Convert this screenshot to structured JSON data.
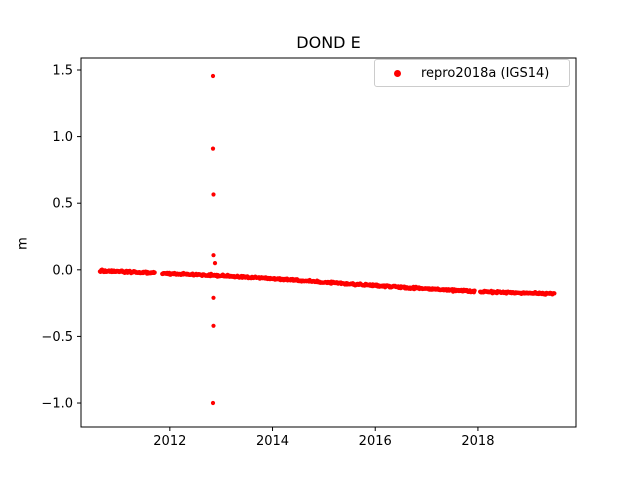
{
  "chart_data": {
    "type": "scatter",
    "title": "DOND E",
    "xlabel": "",
    "ylabel": "m",
    "xlim": [
      2010.27,
      2019.91
    ],
    "ylim": [
      -1.18,
      1.59
    ],
    "xticks": {
      "values": [
        2012,
        2014,
        2016,
        2018
      ],
      "labels": [
        "2012",
        "2014",
        "2016",
        "2018"
      ]
    },
    "yticks": {
      "values": [
        -1.0,
        -0.5,
        0.0,
        0.5,
        1.0,
        1.5
      ],
      "labels": [
        "−1.0",
        "−0.5",
        "0.0",
        "0.5",
        "1.0",
        "1.5"
      ]
    },
    "grid": false,
    "axes_color": "#000000",
    "legend": {
      "position": "upper right",
      "border_color": "#cccccc",
      "entries": [
        {
          "label": "repro2018a (IGS14)",
          "color": "#ff0000",
          "marker": "dot"
        }
      ]
    },
    "series": [
      {
        "name": "repro2018a (IGS14)",
        "color": "#ff0000",
        "marker": "dot",
        "marker_radius_px": 2.1,
        "point_spacing_years": 0.011,
        "scatter_noise_sd_m": 0.004,
        "trend_segments": [
          {
            "points": [
              [
                2010.64,
                -0.008
              ],
              [
                2011.2,
                -0.016
              ],
              [
                2011.71,
                -0.025
              ]
            ]
          },
          {
            "points": [
              [
                2011.85,
                -0.027
              ],
              [
                2012.85,
                -0.042
              ],
              [
                2014.0,
                -0.066
              ],
              [
                2015.0,
                -0.093
              ],
              [
                2016.0,
                -0.118
              ],
              [
                2017.0,
                -0.143
              ],
              [
                2017.94,
                -0.162
              ]
            ]
          },
          {
            "points": [
              [
                2018.04,
                -0.164
              ],
              [
                2019.0,
                -0.174
              ],
              [
                2019.5,
                -0.178
              ]
            ]
          }
        ],
        "outliers": [
          [
            2012.84,
            1.455
          ],
          [
            2012.84,
            0.91
          ],
          [
            2012.85,
            0.565
          ],
          [
            2012.85,
            0.11
          ],
          [
            2012.88,
            0.05
          ],
          [
            2012.85,
            -0.21
          ],
          [
            2012.85,
            -0.42
          ],
          [
            2012.84,
            -1.0
          ]
        ]
      }
    ]
  }
}
